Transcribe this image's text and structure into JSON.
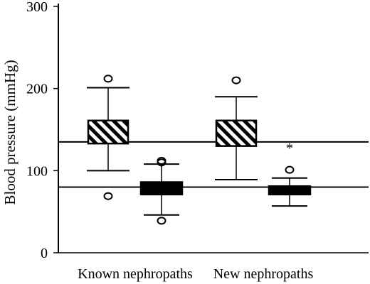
{
  "chart_data": {
    "type": "boxplot",
    "title": "",
    "xlabel": "",
    "ylabel": "Blood pressure (mmHg)",
    "ylim": [
      0,
      300
    ],
    "yticks": [
      0,
      100,
      200,
      300
    ],
    "grid": false,
    "legend": "none",
    "categories": [
      "Known nephropaths",
      "New nephropaths"
    ],
    "series": [
      {
        "pattern": "hatched",
        "boxes": [
          {
            "category": "Known nephropaths",
            "whisker_low": 100,
            "q1": 133,
            "q3": 161,
            "whisker_high": 201,
            "outliers": [
              212,
              69
            ]
          },
          {
            "category": "New nephropaths",
            "whisker_low": 89,
            "q1": 130,
            "q3": 161,
            "whisker_high": 190,
            "outliers": [
              210
            ]
          }
        ]
      },
      {
        "pattern": "solid",
        "boxes": [
          {
            "category": "Known nephropaths",
            "whisker_low": 46,
            "q1": 71,
            "q3": 86,
            "whisker_high": 108,
            "outliers": [
              110,
              112,
              39
            ]
          },
          {
            "category": "New nephropaths",
            "whisker_low": 57,
            "q1": 71,
            "q3": 81,
            "whisker_high": 91,
            "outliers": [
              101
            ],
            "extremes": [
              129
            ]
          }
        ]
      }
    ],
    "reference_lines": [
      135,
      80
    ],
    "extreme_marker": "*",
    "colors": {
      "ink": "#000000",
      "background": "#ffffff"
    }
  }
}
